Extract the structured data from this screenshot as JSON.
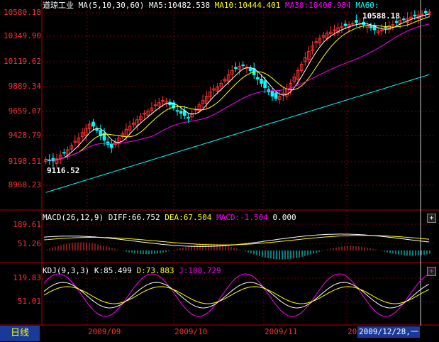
{
  "main": {
    "title": "道琼工业",
    "indicator": "MA(5,10,30,60)",
    "ma5": "MA5:10482.538",
    "ma10": "MA10:10444.401",
    "ma30": "MA30:10406.984",
    "ma60": "MA60:",
    "high_label": "10588.18",
    "low_label": "9116.52",
    "yticks": [
      "10580.18",
      "10349.90",
      "10119.62",
      "9889.34",
      "9659.07",
      "9428.79",
      "9198.51",
      "8968.23"
    ]
  },
  "macd": {
    "indicator": "MACD(26,12,9)",
    "diff": "DIFF:66.752",
    "dea": "DEA:67.504",
    "macd": "MACD:-1.504",
    "zero": "0.000",
    "yticks": [
      "189.61",
      "51.26"
    ]
  },
  "kdj": {
    "indicator": "KDJ(9,3,3)",
    "k": "K:85.499",
    "d": "D:73.883",
    "j": "J:108.729",
    "yticks": [
      "119.83",
      "51.01"
    ]
  },
  "bottom": {
    "period_tab": "日线",
    "dates": [
      "2009/09",
      "2009/10",
      "2009/11",
      "20"
    ],
    "cursor_date": "2009/12/28,一"
  },
  "colors": {
    "up": "#ff3030",
    "down": "#00ffff",
    "ma5": "#ffffff",
    "ma10": "#ffff00",
    "ma30": "#ff00ff",
    "ma60": "#00ffff",
    "grid": "#7a0000"
  },
  "chart_data": {
    "type": "candlestick",
    "axis_range": [
      8968.23,
      10580.18
    ],
    "closes": [
      9210,
      9200,
      9195,
      9215,
      9250,
      9270,
      9300,
      9340,
      9380,
      9410,
      9460,
      9500,
      9540,
      9520,
      9480,
      9430,
      9390,
      9350,
      9320,
      9370,
      9410,
      9450,
      9490,
      9520,
      9550,
      9580,
      9610,
      9640,
      9660,
      9690,
      9720,
      9740,
      9760,
      9750,
      9720,
      9690,
      9660,
      9640,
      9620,
      9600,
      9640,
      9680,
      9720,
      9760,
      9800,
      9840,
      9870,
      9890,
      9920,
      9960,
      10000,
      10040,
      10060,
      10080,
      10090,
      10070,
      10040,
      10000,
      9960,
      9920,
      9880,
      9840,
      9800,
      9780,
      9800,
      9830,
      9870,
      9920,
      9980,
      10040,
      10100,
      10160,
      10220,
      10270,
      10310,
      10340,
      10370,
      10390,
      10400,
      10420,
      10440,
      10450,
      10460,
      10470,
      10480,
      10490,
      10480,
      10470,
      10460,
      10440,
      10420,
      10410,
      10420,
      10440,
      10460,
      10470,
      10490,
      10510,
      10520,
      10530,
      10540,
      10550,
      10560,
      10570,
      10580,
      10588
    ]
  }
}
